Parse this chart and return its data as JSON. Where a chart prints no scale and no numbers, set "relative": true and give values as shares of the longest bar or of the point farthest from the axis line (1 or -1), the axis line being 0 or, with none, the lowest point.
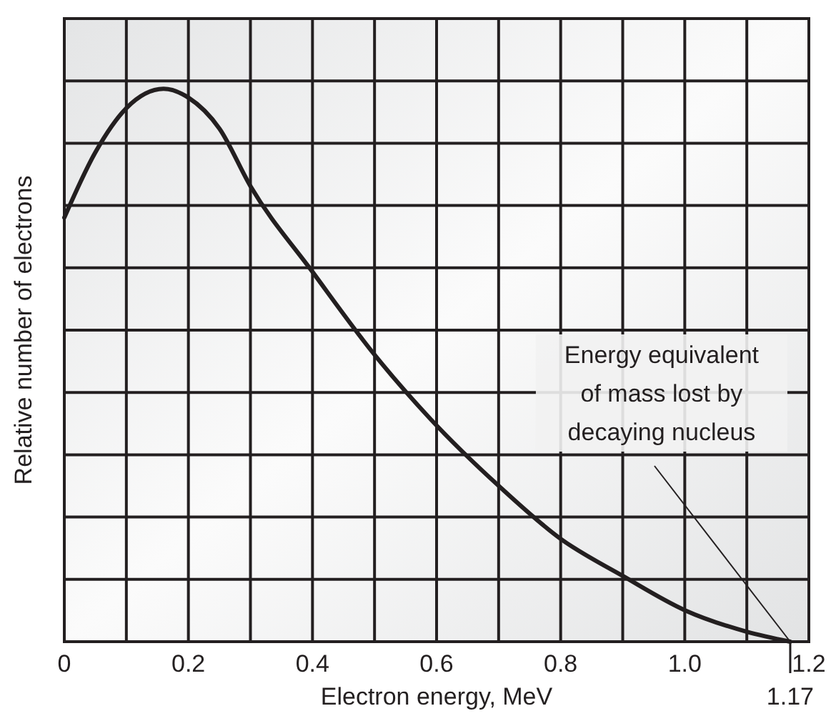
{
  "chart_data": {
    "type": "line",
    "relative": true,
    "xlabel": "Electron energy, MeV",
    "ylabel": "Relative number of electrons",
    "x": [
      0,
      0.05,
      0.1,
      0.16,
      0.2,
      0.25,
      0.3,
      0.4,
      0.5,
      0.59,
      0.7,
      0.8,
      0.9,
      1.0,
      1.1,
      1.17
    ],
    "series": [
      {
        "color": "#231f20",
        "values": [
          0.767,
          0.885,
          0.965,
          1,
          0.984,
          0.928,
          0.824,
          0.669,
          0.519,
          0.403,
          0.282,
          0.186,
          0.119,
          0.057,
          0.018,
          0
        ]
      }
    ],
    "xlim": [
      0,
      1.2
    ],
    "xticks": [
      0,
      {
        "value": 0.1,
        "label": null
      },
      0.2,
      {
        "value": 0.3,
        "label": null
      },
      0.4,
      {
        "value": 0.5,
        "label": null
      },
      0.6,
      {
        "value": 0.7,
        "label": null
      },
      0.8,
      {
        "value": 0.9,
        "label": null
      },
      {
        "value": 1,
        "label": "1.0"
      },
      {
        "value": 1.1,
        "label": null
      },
      1.2
    ],
    "grid": true,
    "line_style": "solid",
    "annotations": [
      {
        "text": "Energy equivalent of mass lost by decaying nucleus",
        "x": 1.17,
        "y": 0
      },
      {
        "text": "1.17",
        "x": 1.17,
        "y": 0
      }
    ]
  }
}
